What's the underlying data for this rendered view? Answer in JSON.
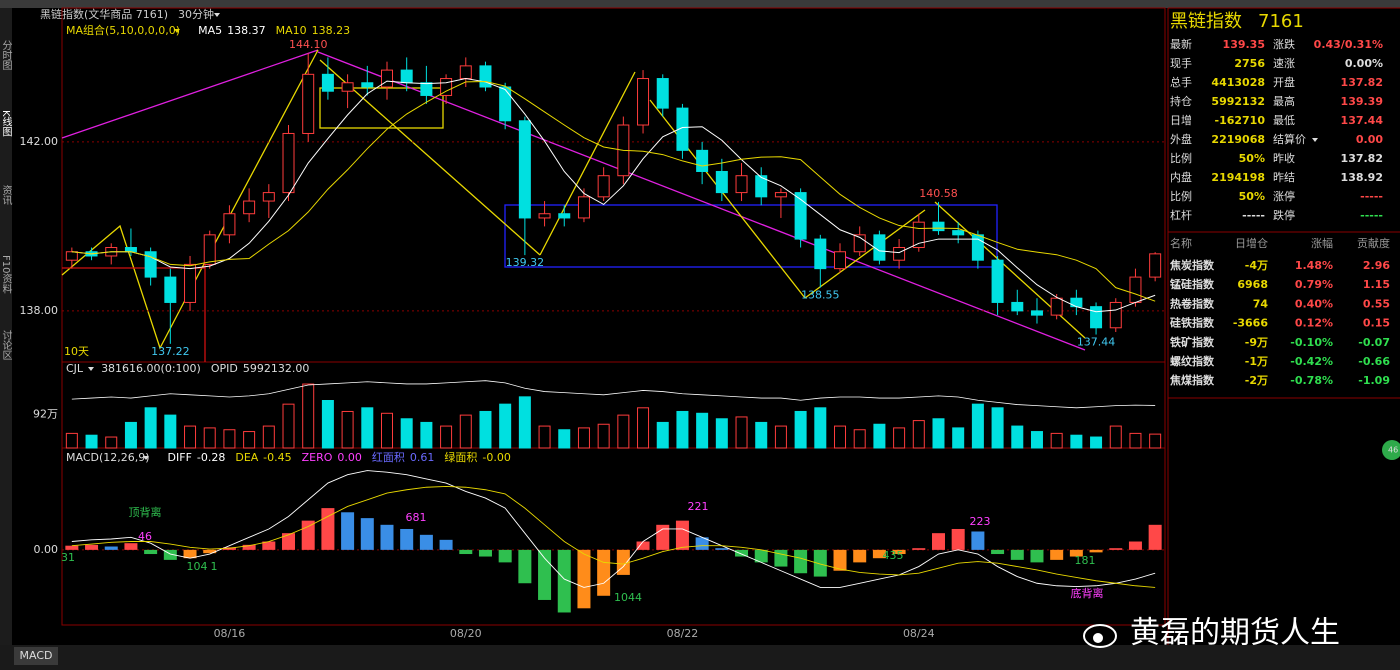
{
  "header": {
    "symbol": "黑链指数(文华商品 7161)",
    "period": "30分钟"
  },
  "sidebar": [
    "分时图",
    "K线图",
    "资讯",
    "F10资料",
    "讨论区"
  ],
  "tab": "MACD",
  "badge": "46",
  "watermark": "黄磊的期货人生",
  "chart_data": [
    {
      "type": "candlestick",
      "indicator": "MA组合(5,10,0,0,0,0)",
      "period_label": "10天",
      "categories": [
        null,
        null,
        null,
        null,
        null,
        null,
        null,
        null,
        "08/16",
        null,
        null,
        null,
        null,
        null,
        null,
        null,
        null,
        null,
        null,
        null,
        "08/20",
        null,
        null,
        null,
        null,
        null,
        null,
        null,
        null,
        null,
        null,
        "08/22",
        null,
        null,
        null,
        null,
        null,
        null,
        null,
        null,
        null,
        null,
        null,
        "08/24",
        null,
        null,
        null,
        null,
        null,
        null,
        null,
        null,
        null,
        null,
        null,
        null
      ],
      "ohlc": [
        [
          139.2,
          139.5,
          139.0,
          139.4
        ],
        [
          139.4,
          139.5,
          139.2,
          139.3
        ],
        [
          139.3,
          139.6,
          139.1,
          139.5
        ],
        [
          139.5,
          139.95,
          139.3,
          139.4
        ],
        [
          139.4,
          139.5,
          138.6,
          138.8
        ],
        [
          138.8,
          139.0,
          137.22,
          138.2
        ],
        [
          138.2,
          139.3,
          138.0,
          139.1
        ],
        [
          139.1,
          139.9,
          139.0,
          139.8
        ],
        [
          139.8,
          140.5,
          139.6,
          140.3
        ],
        [
          140.3,
          140.9,
          140.1,
          140.6
        ],
        [
          140.6,
          141.0,
          140.2,
          140.8
        ],
        [
          140.8,
          142.4,
          140.6,
          142.2
        ],
        [
          142.2,
          144.1,
          142.0,
          143.6
        ],
        [
          143.6,
          144.0,
          143.0,
          143.2
        ],
        [
          143.2,
          143.6,
          142.8,
          143.4
        ],
        [
          143.4,
          143.8,
          143.1,
          143.3
        ],
        [
          143.3,
          143.9,
          143.0,
          143.7
        ],
        [
          143.7,
          144.0,
          143.2,
          143.4
        ],
        [
          143.4,
          143.8,
          142.9,
          143.1
        ],
        [
          143.1,
          143.6,
          142.9,
          143.5
        ],
        [
          143.5,
          144.0,
          143.3,
          143.8
        ],
        [
          143.8,
          143.9,
          143.2,
          143.3
        ],
        [
          143.3,
          143.4,
          142.3,
          142.5
        ],
        [
          142.5,
          142.6,
          139.32,
          140.2
        ],
        [
          140.2,
          140.6,
          140.0,
          140.3
        ],
        [
          140.3,
          140.5,
          140.0,
          140.2
        ],
        [
          140.2,
          140.9,
          140.1,
          140.7
        ],
        [
          140.7,
          141.4,
          140.6,
          141.2
        ],
        [
          141.2,
          142.6,
          141.0,
          142.4
        ],
        [
          142.4,
          143.7,
          142.2,
          143.5
        ],
        [
          143.5,
          143.6,
          142.6,
          142.8
        ],
        [
          142.8,
          142.9,
          141.6,
          141.8
        ],
        [
          141.8,
          142.0,
          141.0,
          141.3
        ],
        [
          141.3,
          141.6,
          140.6,
          140.8
        ],
        [
          140.8,
          141.5,
          140.6,
          141.2
        ],
        [
          141.2,
          141.4,
          140.5,
          140.7
        ],
        [
          140.7,
          140.9,
          140.2,
          140.8
        ],
        [
          140.8,
          140.9,
          139.5,
          139.7
        ],
        [
          139.7,
          139.8,
          138.55,
          139.0
        ],
        [
          139.0,
          139.6,
          138.9,
          139.4
        ],
        [
          139.4,
          140.0,
          139.3,
          139.8
        ],
        [
          139.8,
          139.9,
          139.1,
          139.2
        ],
        [
          139.2,
          139.7,
          139.0,
          139.5
        ],
        [
          139.5,
          140.3,
          139.4,
          140.1
        ],
        [
          140.1,
          140.58,
          139.8,
          139.9
        ],
        [
          139.9,
          140.1,
          139.6,
          139.8
        ],
        [
          139.8,
          139.9,
          139.0,
          139.2
        ],
        [
          139.2,
          139.3,
          137.9,
          138.2
        ],
        [
          138.2,
          138.5,
          137.9,
          138.0
        ],
        [
          138.0,
          138.3,
          137.7,
          137.9
        ],
        [
          137.9,
          138.4,
          137.8,
          138.3
        ],
        [
          138.3,
          138.5,
          137.9,
          138.1
        ],
        [
          138.1,
          138.2,
          137.44,
          137.6
        ],
        [
          137.6,
          138.3,
          137.5,
          138.2
        ],
        [
          138.2,
          139.0,
          138.1,
          138.8
        ],
        [
          138.8,
          139.39,
          138.7,
          139.35
        ]
      ],
      "extreme_labels": [
        null,
        null,
        null,
        null,
        null,
        "137.22",
        null,
        null,
        null,
        null,
        null,
        null,
        "144.10",
        null,
        null,
        null,
        null,
        null,
        null,
        null,
        null,
        null,
        null,
        "139.32",
        null,
        null,
        null,
        null,
        null,
        null,
        null,
        null,
        null,
        null,
        null,
        null,
        null,
        null,
        "138.55",
        null,
        null,
        null,
        null,
        null,
        "140.58",
        null,
        null,
        null,
        null,
        null,
        null,
        null,
        "137.44",
        null,
        null,
        null
      ],
      "up_color": "#ff3c3c",
      "down_color": "#00e0e0",
      "series": [
        {
          "name": "MA5",
          "color": "#ffffff",
          "values": [
            139.4,
            139.35,
            139.4,
            139.4,
            139.28,
            139.04,
            139.0,
            139.06,
            139.24,
            139.6,
            140.12,
            140.74,
            141.5,
            142.08,
            142.64,
            143.14,
            143.44,
            143.4,
            143.38,
            143.4,
            143.5,
            143.42,
            143.24,
            142.66,
            142.02,
            141.3,
            140.78,
            140.52,
            140.96,
            141.6,
            142.12,
            142.34,
            142.36,
            142.04,
            141.58,
            141.16,
            140.96,
            140.64,
            140.28,
            139.92,
            139.74,
            139.42,
            139.38,
            139.6,
            139.7,
            139.7,
            139.7,
            139.44,
            139.02,
            138.62,
            138.32,
            138.1,
            137.98,
            138.02,
            138.2,
            138.37
          ]
        },
        {
          "name": "MA10",
          "color": "#e8d800",
          "values": [
            139.4,
            139.35,
            139.4,
            139.4,
            139.28,
            139.1,
            139.07,
            139.16,
            139.22,
            139.24,
            139.58,
            139.9,
            140.34,
            140.88,
            141.34,
            141.84,
            142.3,
            142.66,
            142.94,
            143.2,
            143.42,
            143.43,
            143.32,
            143.02,
            142.71,
            142.4,
            142.1,
            141.88,
            141.8,
            141.78,
            141.7,
            141.55,
            141.43,
            141.5,
            141.59,
            141.64,
            141.65,
            141.58,
            141.17,
            140.76,
            140.45,
            140.2,
            140.02,
            139.95,
            139.96,
            139.95,
            139.79,
            139.62,
            139.46,
            139.39,
            139.33,
            139.2,
            139.0,
            138.55,
            138.4,
            138.23
          ]
        }
      ],
      "ylim": [
        136.79,
        145.17
      ],
      "yticks": [
        {
          "value": 138,
          "label": "138.00"
        },
        {
          "value": 142,
          "label": "142.00"
        }
      ],
      "grid": true
    },
    {
      "type": "bar",
      "indicator": "CJL",
      "volume_text": "381616.00(0:100)",
      "values": [
        40,
        35,
        30,
        70,
        110,
        90,
        60,
        55,
        50,
        45,
        60,
        120,
        175,
        130,
        100,
        110,
        95,
        80,
        70,
        60,
        90,
        100,
        120,
        140,
        60,
        50,
        55,
        65,
        90,
        110,
        70,
        100,
        95,
        80,
        85,
        70,
        60,
        100,
        110,
        60,
        50,
        65,
        55,
        75,
        80,
        55,
        120,
        110,
        60,
        45,
        40,
        35,
        30,
        60,
        40,
        38
      ],
      "ylim": [
        0,
        208
      ],
      "yticks": [
        {
          "value": 92,
          "label": "92万"
        }
      ],
      "series": [
        {
          "name": "OPID",
          "value_label": "5992132.00",
          "color": "#ffffff",
          "axis": "y2",
          "values": [
            605,
            606,
            607,
            606,
            608,
            610,
            609,
            608,
            607,
            608,
            610,
            614,
            618,
            619,
            620,
            621,
            620,
            619,
            619,
            620,
            621,
            622,
            620,
            615,
            612,
            611,
            610,
            609,
            611,
            613,
            612,
            610,
            609,
            608,
            607,
            606,
            606,
            604,
            606,
            607,
            607,
            606,
            606,
            607,
            608,
            607,
            604,
            602,
            600,
            599,
            598,
            597,
            598,
            599,
            599.5,
            599.2
          ]
        }
      ],
      "y2lim": [
        560,
        630
      ]
    },
    {
      "type": "macd",
      "indicator": "MACD(12,26,9)",
      "values": [
        0.05,
        0.06,
        0.04,
        0.08,
        -0.05,
        -0.12,
        -0.1,
        -0.04,
        0.03,
        0.06,
        0.1,
        0.2,
        0.35,
        0.5,
        0.45,
        0.38,
        0.3,
        0.25,
        0.18,
        0.12,
        -0.05,
        -0.08,
        -0.15,
        -0.4,
        -0.6,
        -0.75,
        -0.7,
        -0.55,
        -0.3,
        0.1,
        0.3,
        0.35,
        0.15,
        0.02,
        -0.08,
        -0.15,
        -0.2,
        -0.28,
        -0.32,
        -0.25,
        -0.15,
        -0.1,
        -0.05,
        0.02,
        0.2,
        0.25,
        0.22,
        -0.05,
        -0.12,
        -0.15,
        -0.12,
        -0.08,
        -0.03,
        0.02,
        0.1,
        0.3
      ],
      "series": [
        {
          "name": "DIFF",
          "color": "#ffffff",
          "values": [
            0.1,
            0.12,
            0.13,
            0.15,
            0.08,
            -0.05,
            -0.1,
            -0.05,
            0.05,
            0.15,
            0.25,
            0.4,
            0.6,
            0.8,
            0.9,
            0.95,
            0.93,
            0.9,
            0.85,
            0.8,
            0.7,
            0.62,
            0.5,
            0.2,
            -0.1,
            -0.35,
            -0.45,
            -0.4,
            -0.2,
            0.1,
            0.25,
            0.25,
            0.15,
            0.05,
            -0.05,
            -0.15,
            -0.25,
            -0.35,
            -0.45,
            -0.45,
            -0.4,
            -0.35,
            -0.3,
            -0.2,
            -0.05,
            0.0,
            -0.05,
            -0.2,
            -0.32,
            -0.4,
            -0.43,
            -0.44,
            -0.43,
            -0.4,
            -0.35,
            -0.28
          ]
        },
        {
          "name": "DEA",
          "color": "#e8d800",
          "values": [
            0.05,
            0.07,
            0.09,
            0.1,
            0.1,
            0.07,
            0.03,
            0.01,
            0.02,
            0.05,
            0.1,
            0.18,
            0.28,
            0.4,
            0.52,
            0.6,
            0.68,
            0.72,
            0.75,
            0.76,
            0.75,
            0.72,
            0.67,
            0.5,
            0.3,
            0.1,
            -0.05,
            -0.15,
            -0.17,
            -0.1,
            -0.02,
            0.03,
            0.05,
            0.05,
            0.03,
            0.0,
            -0.05,
            -0.1,
            -0.17,
            -0.23,
            -0.27,
            -0.29,
            -0.3,
            -0.28,
            -0.22,
            -0.16,
            -0.14,
            -0.16,
            -0.2,
            -0.24,
            -0.29,
            -0.33,
            -0.37,
            -0.4,
            -0.43,
            -0.45
          ]
        }
      ],
      "stats": [
        {
          "name": "ZERO",
          "value": "0.00",
          "color": "#ff40ff"
        },
        {
          "name": "红面积",
          "value": "0.61",
          "color": "#6a6aff"
        },
        {
          "name": "绿面积",
          "value": "-0.00",
          "color": "#e8d800"
        }
      ],
      "colors": {
        "pos_up": "#ff4848",
        "pos_down": "#3a8ee6",
        "neg_down": "#2fbf4f",
        "neg_up": "#ff8c1a"
      },
      "annotations": [
        "顶背离",
        "底背离",
        31,
        46,
        104,
        1,
        681,
        221,
        1044,
        223,
        435,
        181
      ],
      "ylim": [
        -0.9,
        1.22
      ],
      "yticks": [
        {
          "value": 0,
          "label": "0.00"
        }
      ]
    }
  ],
  "quote": {
    "title": "黑链指数",
    "code": "7161",
    "rows": [
      [
        "最新",
        "139.35",
        "涨跌",
        "0.43/0.31%"
      ],
      [
        "现手",
        "2756",
        "速涨",
        "0.00%"
      ],
      [
        "总手",
        "4413028",
        "开盘",
        "137.82"
      ],
      [
        "持仓",
        "5992132",
        "最高",
        "139.39"
      ],
      [
        "日增",
        "-162710",
        "最低",
        "137.44"
      ],
      [
        "外盘",
        "2219068",
        "结算价",
        "0.00"
      ],
      [
        "比例",
        "50%",
        "昨收",
        "137.82"
      ],
      [
        "内盘",
        "2194198",
        "昨结",
        "138.92"
      ],
      [
        "比例",
        "50%",
        "涨停",
        "-----"
      ],
      [
        "杠杆",
        "-----",
        "跌停",
        "-----"
      ]
    ]
  },
  "constituents": {
    "headers": [
      "名称",
      "日增仓",
      "涨幅",
      "贡献度"
    ],
    "rows": [
      [
        "焦炭指数",
        "-4万",
        "1.48%",
        "2.96"
      ],
      [
        "锰硅指数",
        "6968",
        "0.79%",
        "1.15"
      ],
      [
        "热卷指数",
        "74",
        "0.40%",
        "0.55"
      ],
      [
        "硅铁指数",
        "-3666",
        "0.12%",
        "0.15"
      ],
      [
        "铁矿指数",
        "-9万",
        "-0.10%",
        "-0.07"
      ],
      [
        "螺纹指数",
        "-1万",
        "-0.42%",
        "-0.66"
      ],
      [
        "焦煤指数",
        "-2万",
        "-0.78%",
        "-1.09"
      ]
    ]
  }
}
